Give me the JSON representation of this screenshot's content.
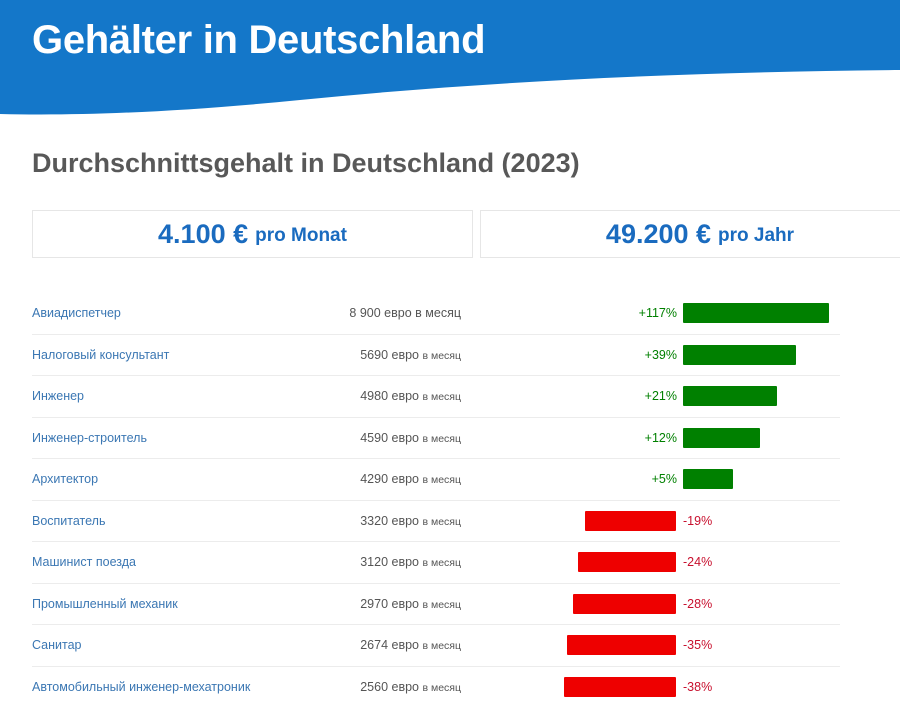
{
  "header": {
    "title": "Gehälter in Deutschland"
  },
  "subtitle": "Durchschnittsgehalt in Deutschland (2023)",
  "stats": [
    {
      "value": "4.100 €",
      "unit": "pro Monat"
    },
    {
      "value": "49.200 €",
      "unit": "pro Jahr"
    }
  ],
  "colors": {
    "brand": "#1477c9",
    "positive": "#008000",
    "negative": "#ee0000",
    "link": "#3b77b3"
  },
  "rows": [
    {
      "job": "Авиадиспетчер",
      "amount": "8 900 евро",
      "unit": "в месяц",
      "unit_small": false,
      "diff": "+117%",
      "value": 117
    },
    {
      "job": "Налоговый консультант",
      "amount": "5690 евро",
      "unit": "в месяц",
      "unit_small": true,
      "diff": "+39%",
      "value": 39
    },
    {
      "job": "Инженер",
      "amount": "4980 евро",
      "unit": "в месяц",
      "unit_small": true,
      "diff": "+21%",
      "value": 21
    },
    {
      "job": "Инженер-строитель",
      "amount": "4590 евро",
      "unit": "в месяц",
      "unit_small": true,
      "diff": "+12%",
      "value": 12
    },
    {
      "job": "Архитектор",
      "amount": "4290 евро",
      "unit": "в месяц",
      "unit_small": true,
      "diff": "+5%",
      "value": 5
    },
    {
      "job": "Воспитатель",
      "amount": "3320 евро",
      "unit": "в месяц",
      "unit_small": true,
      "diff": "-19%",
      "value": -19
    },
    {
      "job": "Машинист поезда",
      "amount": "3120 евро",
      "unit": "в месяц",
      "unit_small": true,
      "diff": "-24%",
      "value": -24
    },
    {
      "job": "Промышленный механик",
      "amount": "2970 евро",
      "unit": "в месяц",
      "unit_small": true,
      "diff": "-28%",
      "value": -28
    },
    {
      "job": "Санитар",
      "amount": "2674 евро",
      "unit": "в месяц",
      "unit_small": true,
      "diff": "-35%",
      "value": -35
    },
    {
      "job": "Автомобильный инженер-мехатроник",
      "amount": "2560 евро",
      "unit": "в месяц",
      "unit_small": true,
      "diff": "-38%",
      "value": -38
    }
  ]
}
